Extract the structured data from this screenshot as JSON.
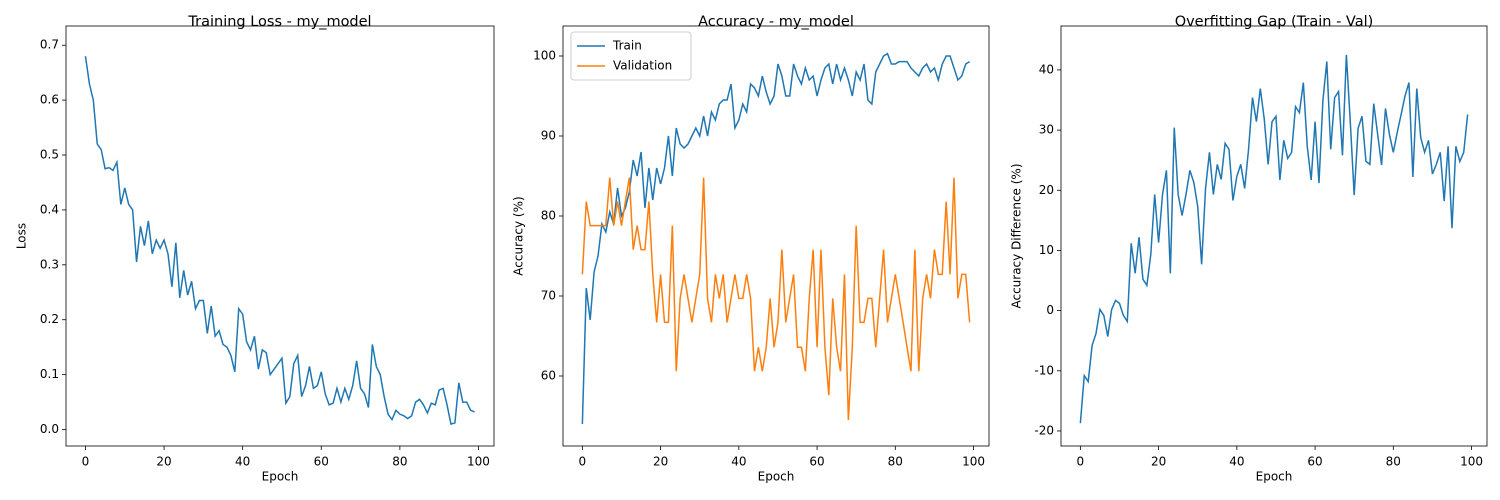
{
  "chart_data": [
    {
      "type": "line",
      "title": "Training Loss - my_model",
      "x_label": "Epoch",
      "y_label": "Loss",
      "x": [
        0,
        1,
        2,
        3,
        4,
        5,
        6,
        7,
        8,
        9,
        10,
        11,
        12,
        13,
        14,
        15,
        16,
        17,
        18,
        19,
        20,
        21,
        22,
        23,
        24,
        25,
        26,
        27,
        28,
        29,
        30,
        31,
        32,
        33,
        34,
        35,
        36,
        37,
        38,
        39,
        40,
        41,
        42,
        43,
        44,
        45,
        46,
        47,
        48,
        49,
        50,
        51,
        52,
        53,
        54,
        55,
        56,
        57,
        58,
        59,
        60,
        61,
        62,
        63,
        64,
        65,
        66,
        67,
        68,
        69,
        70,
        71,
        72,
        73,
        74,
        75,
        76,
        77,
        78,
        79,
        80,
        81,
        82,
        83,
        84,
        85,
        86,
        87,
        88,
        89,
        90,
        91,
        92,
        93,
        94,
        95,
        96,
        97,
        98,
        99
      ],
      "xlim": [
        -4.95,
        103.95
      ],
      "xticks": [
        0,
        20,
        40,
        60,
        80,
        100
      ],
      "ylim": [
        -0.03,
        0.735
      ],
      "yticks": [
        {
          "value": 0,
          "label": "0.0"
        },
        0.1,
        0.2,
        0.3,
        0.4,
        0.5,
        0.6,
        0.7
      ],
      "series": [
        {
          "name": "Loss",
          "color": "#1f77b4",
          "values": [
            0.68,
            0.63,
            0.6,
            0.52,
            0.51,
            0.475,
            0.477,
            0.472,
            0.487,
            0.41,
            0.44,
            0.41,
            0.4,
            0.305,
            0.37,
            0.335,
            0.38,
            0.32,
            0.345,
            0.33,
            0.345,
            0.32,
            0.26,
            0.34,
            0.24,
            0.29,
            0.245,
            0.27,
            0.22,
            0.235,
            0.235,
            0.175,
            0.225,
            0.17,
            0.18,
            0.155,
            0.15,
            0.135,
            0.105,
            0.22,
            0.21,
            0.16,
            0.145,
            0.17,
            0.11,
            0.145,
            0.14,
            0.1,
            0.11,
            0.12,
            0.13,
            0.048,
            0.06,
            0.12,
            0.135,
            0.06,
            0.08,
            0.115,
            0.075,
            0.08,
            0.105,
            0.065,
            0.045,
            0.048,
            0.075,
            0.05,
            0.075,
            0.055,
            0.08,
            0.125,
            0.075,
            0.065,
            0.04,
            0.155,
            0.115,
            0.1,
            0.06,
            0.028,
            0.018,
            0.035,
            0.028,
            0.025,
            0.02,
            0.025,
            0.05,
            0.055,
            0.045,
            0.03,
            0.048,
            0.045,
            0.072,
            0.075,
            0.045,
            0.01,
            0.012,
            0.085,
            0.05,
            0.05,
            0.035,
            0.032
          ]
        }
      ]
    },
    {
      "type": "line",
      "title": "Accuracy - my_model",
      "x_label": "Epoch",
      "y_label": "Accuracy (%)",
      "legend": "upper left",
      "x": [
        0,
        1,
        2,
        3,
        4,
        5,
        6,
        7,
        8,
        9,
        10,
        11,
        12,
        13,
        14,
        15,
        16,
        17,
        18,
        19,
        20,
        21,
        22,
        23,
        24,
        25,
        26,
        27,
        28,
        29,
        30,
        31,
        32,
        33,
        34,
        35,
        36,
        37,
        38,
        39,
        40,
        41,
        42,
        43,
        44,
        45,
        46,
        47,
        48,
        49,
        50,
        51,
        52,
        53,
        54,
        55,
        56,
        57,
        58,
        59,
        60,
        61,
        62,
        63,
        64,
        65,
        66,
        67,
        68,
        69,
        70,
        71,
        72,
        73,
        74,
        75,
        76,
        77,
        78,
        79,
        80,
        81,
        82,
        83,
        84,
        85,
        86,
        87,
        88,
        89,
        90,
        91,
        92,
        93,
        94,
        95,
        96,
        97,
        98,
        99
      ],
      "xlim": [
        -4.95,
        103.95
      ],
      "xticks": [
        0,
        20,
        40,
        60,
        80,
        100
      ],
      "ylim": [
        51.25,
        103.75
      ],
      "yticks": [
        60,
        70,
        80,
        90,
        100
      ],
      "series": [
        {
          "name": "Train",
          "color": "#1f77b4",
          "values": [
            54,
            71,
            67,
            73,
            75,
            79,
            78,
            80.5,
            79,
            83.5,
            80,
            81,
            83,
            87,
            85,
            88,
            81,
            86,
            82,
            86,
            84,
            86,
            90,
            85,
            91,
            89,
            88.5,
            89,
            90,
            91,
            90,
            92.5,
            90,
            93,
            92,
            94,
            94.5,
            94.5,
            96.5,
            91,
            92,
            94,
            93,
            96.5,
            96,
            95,
            97.5,
            95.5,
            94,
            95,
            99,
            97.5,
            95,
            95,
            99,
            97.5,
            96.5,
            98.5,
            97,
            97.5,
            95,
            97,
            98.5,
            99,
            96.5,
            99,
            97,
            98.5,
            97,
            95,
            98,
            97,
            99,
            94.5,
            94,
            98,
            99,
            100,
            100.3,
            99,
            99,
            99.3,
            99.3,
            99.3,
            98.5,
            98,
            97.5,
            98.5,
            99,
            98,
            98.5,
            97,
            99,
            100,
            100,
            98.5,
            97,
            97.5,
            99,
            99.3
          ]
        },
        {
          "name": "Validation",
          "color": "#ff7f0e",
          "values": [
            72.7,
            81.8,
            78.8,
            78.8,
            78.8,
            78.8,
            78.8,
            84.8,
            78.8,
            81.8,
            78.8,
            81.8,
            84.8,
            75.8,
            78.8,
            75.8,
            75.8,
            81.8,
            72.7,
            66.7,
            72.7,
            66.7,
            66.7,
            78.8,
            60.6,
            69.7,
            72.7,
            69.7,
            66.7,
            69.7,
            72.7,
            84.8,
            69.7,
            66.7,
            72.7,
            69.7,
            72.7,
            66.7,
            69.7,
            72.7,
            69.7,
            69.7,
            72.7,
            69.7,
            60.6,
            63.6,
            60.6,
            63.6,
            69.7,
            63.6,
            66.7,
            75.8,
            66.7,
            69.7,
            72.7,
            63.6,
            63.6,
            60.6,
            69.7,
            75.8,
            63.6,
            75.8,
            63.6,
            57.6,
            69.7,
            63.6,
            60.6,
            72.7,
            54.5,
            63.6,
            78.8,
            66.7,
            66.7,
            69.7,
            69.7,
            63.6,
            69.7,
            75.8,
            66.7,
            69.7,
            72.7,
            69.7,
            66.7,
            63.6,
            60.6,
            75.8,
            60.6,
            69.7,
            72.7,
            69.7,
            75.8,
            72.7,
            72.7,
            81.8,
            72.7,
            84.8,
            69.7,
            72.7,
            72.7,
            66.7
          ]
        }
      ]
    },
    {
      "type": "line",
      "title": "Overfitting Gap (Train - Val)",
      "x_label": "Epoch",
      "y_label": "Accuracy Difference (%)",
      "x": [
        0,
        1,
        2,
        3,
        4,
        5,
        6,
        7,
        8,
        9,
        10,
        11,
        12,
        13,
        14,
        15,
        16,
        17,
        18,
        19,
        20,
        21,
        22,
        23,
        24,
        25,
        26,
        27,
        28,
        29,
        30,
        31,
        32,
        33,
        34,
        35,
        36,
        37,
        38,
        39,
        40,
        41,
        42,
        43,
        44,
        45,
        46,
        47,
        48,
        49,
        50,
        51,
        52,
        53,
        54,
        55,
        56,
        57,
        58,
        59,
        60,
        61,
        62,
        63,
        64,
        65,
        66,
        67,
        68,
        69,
        70,
        71,
        72,
        73,
        74,
        75,
        76,
        77,
        78,
        79,
        80,
        81,
        82,
        83,
        84,
        85,
        86,
        87,
        88,
        89,
        90,
        91,
        92,
        93,
        94,
        95,
        96,
        97,
        98,
        99
      ],
      "xlim": [
        -4.95,
        103.95
      ],
      "xticks": [
        0,
        20,
        40,
        60,
        80,
        100
      ],
      "ylim": [
        -22.5,
        47.3
      ],
      "yticks": [
        -20,
        -10,
        0,
        10,
        20,
        30,
        40
      ],
      "series": [
        {
          "name": "Gap",
          "color": "#1f77b4",
          "values": [
            -18.7,
            -10.8,
            -11.8,
            -5.8,
            -3.8,
            0.2,
            -0.8,
            -4.3,
            0.2,
            1.7,
            1.2,
            -0.8,
            -1.8,
            11.2,
            6.2,
            12.2,
            5.2,
            4.2,
            9.3,
            19.3,
            11.3,
            19.3,
            23.3,
            6.2,
            30.4,
            19.3,
            15.8,
            19.3,
            23.3,
            21.3,
            17.3,
            7.7,
            20.3,
            26.3,
            19.3,
            24.3,
            21.8,
            27.8,
            26.8,
            18.3,
            22.3,
            24.3,
            20.3,
            26.8,
            35.4,
            31.4,
            36.9,
            31.9,
            24.3,
            31.4,
            32.3,
            21.7,
            28.3,
            25.3,
            26.3,
            33.9,
            32.9,
            37.9,
            27.3,
            21.7,
            31.4,
            21.2,
            34.9,
            41.4,
            26.8,
            35.4,
            36.4,
            25.8,
            42.5,
            31.4,
            19.2,
            30.3,
            32.3,
            24.8,
            24.3,
            34.4,
            29.3,
            24.2,
            33.6,
            29.3,
            26.3,
            29.6,
            32.6,
            35.7,
            37.9,
            22.2,
            36.9,
            28.8,
            26.3,
            28.3,
            22.7,
            24.3,
            26.3,
            18.2,
            27.3,
            13.7,
            27.3,
            24.8,
            26.3,
            32.6
          ]
        }
      ]
    }
  ]
}
